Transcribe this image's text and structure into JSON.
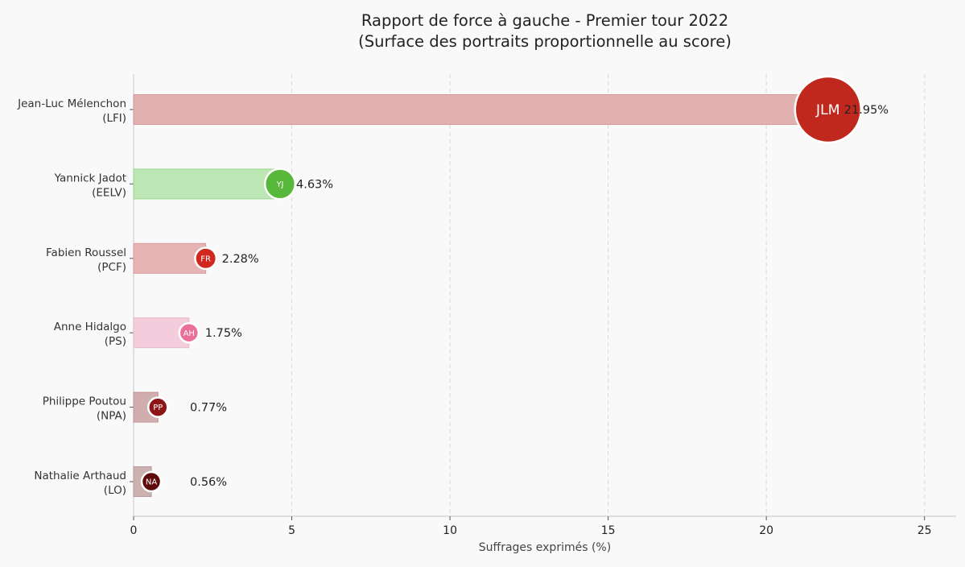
{
  "chart_data": {
    "type": "bar",
    "orientation": "horizontal",
    "title": [
      "Rapport de force à gauche - Premier tour 2022",
      "(Surface des portraits proportionnelle au score)"
    ],
    "xlabel": "Suffrages exprimés (%)",
    "xlim": [
      0,
      26
    ],
    "xticks": [
      0,
      5,
      10,
      15,
      20,
      25
    ],
    "grid": "x-dashed",
    "candidates": [
      {
        "name": "Jean-Luc Mélenchon",
        "party": "(LFI)",
        "initials": "JLM",
        "value": 21.95,
        "label": "21.95%",
        "bar_color": "#e2b1b1",
        "bar_edge": "#d49797",
        "circle_color": "#c0281e"
      },
      {
        "name": "Yannick Jadot",
        "party": "(EELV)",
        "initials": "YJ",
        "value": 4.63,
        "label": "4.63%",
        "bar_color": "#bce6b3",
        "bar_edge": "#9cd78f",
        "circle_color": "#58b83a"
      },
      {
        "name": "Fabien Roussel",
        "party": "(PCF)",
        "initials": "FR",
        "value": 2.28,
        "label": "2.28%",
        "bar_color": "#e6b4b4",
        "bar_edge": "#d89b9b",
        "circle_color": "#d0281f"
      },
      {
        "name": "Anne Hidalgo",
        "party": "(PS)",
        "initials": "AH",
        "value": 1.75,
        "label": "1.75%",
        "bar_color": "#f3cddb",
        "bar_edge": "#e9b7c9",
        "circle_color": "#ea6f9a"
      },
      {
        "name": "Philippe Poutou",
        "party": "(NPA)",
        "initials": "PP",
        "value": 0.77,
        "label": "0.77%",
        "bar_color": "#d1aeae",
        "bar_edge": "#bf9393",
        "circle_color": "#8d1515"
      },
      {
        "name": "Nathalie Arthaud",
        "party": "(LO)",
        "initials": "NA",
        "value": 0.56,
        "label": "0.56%",
        "bar_color": "#ccb1b1",
        "bar_edge": "#b99797",
        "circle_color": "#5e0b0b"
      }
    ]
  }
}
